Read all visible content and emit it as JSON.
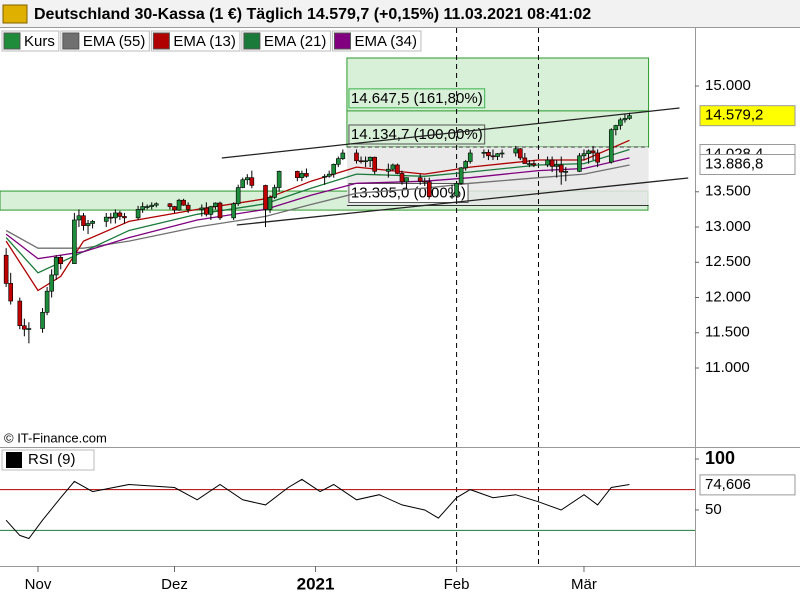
{
  "chart_data": {
    "type": "candlestick",
    "title": "Deutschland 30-Kassa (1 €) Täglich 14.579,7 (+0,15%) 11.03.2021 08:41:02",
    "name": "Kurs",
    "up_color": "#1e8c3a",
    "down_color": "#c00000",
    "x": [
      -7,
      -6,
      -4,
      -3,
      -2,
      1,
      2,
      3,
      4,
      5,
      8,
      9,
      10,
      11,
      12,
      15,
      16,
      17,
      18,
      19,
      22,
      23,
      24,
      25,
      26,
      29,
      30,
      31,
      32,
      33,
      36,
      37,
      38,
      39,
      40,
      43,
      44,
      45,
      46,
      47,
      50,
      51,
      52,
      53,
      57,
      58,
      59,
      63,
      64,
      65,
      66,
      67,
      70,
      71,
      72,
      73,
      74,
      77,
      78,
      79,
      80,
      81,
      84,
      85,
      86,
      91,
      92,
      93,
      94,
      95,
      98,
      99,
      100,
      101,
      102,
      105,
      106,
      107,
      108,
      109,
      112,
      113,
      114,
      115,
      116,
      119,
      120,
      121,
      122,
      123,
      126,
      127,
      128,
      129,
      130
    ],
    "open": [
      12600,
      12200,
      11950,
      11600,
      11550,
      11560,
      11790,
      12090,
      12320,
      12570,
      12480,
      13100,
      13160,
      13020,
      13050,
      13080,
      13140,
      13130,
      13200,
      13150,
      13130,
      13250,
      13290,
      13290,
      13310,
      13330,
      13290,
      13240,
      13380,
      13310,
      13250,
      13270,
      13180,
      13290,
      13340,
      13130,
      13330,
      13560,
      13670,
      13700,
      13590,
      13250,
      13420,
      13560,
      13790,
      13700,
      13760,
      13720,
      13720,
      13750,
      13890,
      13970,
      14050,
      13940,
      13930,
      13940,
      13990,
      13790,
      13820,
      13880,
      13760,
      13640,
      13700,
      13650,
      13640,
      13430,
      13440,
      13620,
      13840,
      13930,
      14050,
      14060,
      14010,
      14000,
      14040,
      14050,
      14110,
      13980,
      13900,
      13900,
      13880,
      13950,
      13860,
      13880,
      13780,
      13790,
      14010,
      14040,
      14080,
      14050,
      13920,
      14380,
      14440,
      14520,
      14540
    ],
    "high": [
      12700,
      12350,
      12000,
      11700,
      11650,
      11850,
      12150,
      12400,
      12600,
      12600,
      13200,
      13250,
      13200,
      13100,
      13100,
      13200,
      13200,
      13250,
      13230,
      13200,
      13300,
      13350,
      13320,
      13350,
      13350,
      13340,
      13300,
      13400,
      13400,
      13350,
      13320,
      13350,
      13300,
      13350,
      13360,
      13350,
      13600,
      13700,
      13750,
      13800,
      13600,
      13450,
      13600,
      13800,
      13800,
      13800,
      13830,
      13750,
      13800,
      13900,
      14000,
      14100,
      14100,
      14000,
      14000,
      14000,
      14000,
      13900,
      13900,
      13900,
      13800,
      13700,
      13750,
      13700,
      13700,
      13600,
      13650,
      13850,
      13950,
      14100,
      14100,
      14100,
      14100,
      14050,
      14100,
      14150,
      14120,
      14050,
      13950,
      13950,
      14000,
      14000,
      13950,
      14000,
      13850,
      14050,
      14100,
      14100,
      14150,
      14100,
      14400,
      14450,
      14550,
      14600,
      14620
    ],
    "low": [
      12150,
      11900,
      11550,
      11450,
      11350,
      11500,
      11750,
      12000,
      12250,
      12400,
      12480,
      13000,
      12950,
      12900,
      12980,
      13000,
      13050,
      13050,
      13100,
      13050,
      13100,
      13200,
      13250,
      13250,
      13280,
      13250,
      13200,
      13230,
      13300,
      13200,
      13150,
      13150,
      13100,
      13250,
      13100,
      13100,
      13300,
      13550,
      13600,
      13550,
      13000,
      13200,
      13400,
      13500,
      13650,
      13650,
      13700,
      13600,
      13700,
      13700,
      13850,
      13950,
      13900,
      13900,
      13850,
      13850,
      13750,
      13700,
      13800,
      13750,
      13600,
      13550,
      13600,
      13580,
      13450,
      13400,
      13400,
      13600,
      13800,
      13900,
      13980,
      13950,
      13950,
      13950,
      13980,
      14000,
      13950,
      13900,
      13850,
      13850,
      13850,
      13780,
      13700,
      13600,
      13650,
      13780,
      13950,
      13900,
      13950,
      13850,
      13900,
      14300,
      14380,
      14480,
      14520
    ],
    "close": [
      12200,
      11950,
      11600,
      11550,
      11560,
      11790,
      12090,
      12320,
      12570,
      12480,
      13100,
      13160,
      13020,
      13050,
      13080,
      13140,
      13130,
      13200,
      13150,
      13130,
      13250,
      13290,
      13290,
      13310,
      13330,
      13290,
      13240,
      13380,
      13310,
      13250,
      13270,
      13180,
      13290,
      13340,
      13130,
      13330,
      13560,
      13670,
      13700,
      13590,
      13250,
      13420,
      13560,
      13790,
      13700,
      13760,
      13720,
      13720,
      13750,
      13890,
      13970,
      14050,
      13940,
      13930,
      13940,
      13990,
      13790,
      13820,
      13880,
      13760,
      13640,
      13700,
      13650,
      13640,
      13430,
      13440,
      13620,
      13840,
      13930,
      14050,
      14060,
      14010,
      14000,
      14040,
      14050,
      14110,
      13980,
      13900,
      13900,
      13880,
      13950,
      13860,
      13880,
      13780,
      13790,
      14010,
      14040,
      14080,
      14050,
      13920,
      14380,
      14440,
      14520,
      14540,
      14580
    ],
    "xlim": [
      -8.35,
      144.4
    ],
    "xticks": [
      {
        "value": 0,
        "label": "Nov"
      },
      {
        "value": 30,
        "label": "Dez"
      },
      {
        "value": 61,
        "label": "2021"
      },
      {
        "value": 92,
        "label": "Feb"
      },
      {
        "value": 120,
        "label": "Mär"
      }
    ],
    "ylim": [
      9908,
      15823
    ],
    "yticks": [
      {
        "value": 11000,
        "label": "11.000"
      },
      {
        "value": 11500,
        "label": "11.500"
      },
      {
        "value": 12000,
        "label": "12.000"
      },
      {
        "value": 12500,
        "label": "12.500"
      },
      {
        "value": 13000,
        "label": "13.000"
      },
      {
        "value": 13500,
        "label": "13.500"
      },
      {
        "value": 15000,
        "label": "15.000"
      }
    ],
    "overlays": [
      {
        "name": "EMA (55)",
        "color": "#707070",
        "x": [
          -7,
          0,
          10,
          20,
          35,
          50,
          60,
          70,
          85,
          95,
          110,
          120,
          130
        ],
        "values": [
          12950,
          12700,
          12700,
          12800,
          13000,
          13150,
          13320,
          13480,
          13550,
          13620,
          13700,
          13750,
          13880
        ]
      },
      {
        "name": "EMA (13)",
        "color": "#b00000",
        "x": [
          -7,
          0,
          5,
          10,
          20,
          35,
          50,
          60,
          70,
          85,
          95,
          110,
          120,
          130
        ],
        "values": [
          12800,
          12100,
          12300,
          12800,
          13080,
          13250,
          13400,
          13650,
          13850,
          13750,
          13850,
          13950,
          13950,
          14230
        ]
      },
      {
        "name": "EMA (21)",
        "color": "#1a7a3a",
        "x": [
          -7,
          0,
          10,
          20,
          35,
          50,
          60,
          70,
          85,
          95,
          110,
          120,
          130
        ],
        "values": [
          12850,
          12350,
          12650,
          12950,
          13180,
          13330,
          13550,
          13750,
          13720,
          13780,
          13880,
          13900,
          14100
        ]
      },
      {
        "name": "EMA (34)",
        "color": "#800080",
        "x": [
          -7,
          0,
          10,
          20,
          35,
          50,
          60,
          70,
          85,
          95,
          110,
          120,
          130
        ],
        "values": [
          12900,
          12550,
          12650,
          12850,
          13100,
          13250,
          13450,
          13620,
          13650,
          13700,
          13800,
          13830,
          13980
        ]
      }
    ],
    "trendlines": [
      {
        "x": [
          40.4,
          141
        ],
        "values": [
          13979,
          14688
        ]
      },
      {
        "x": [
          43.7,
          142.9
        ],
        "values": [
          13028,
          13695
        ]
      }
    ],
    "vlines": [
      92,
      110
    ],
    "zone": {
      "range": [
        13240,
        13510
      ],
      "color": "#d8efd8"
    },
    "fibonacci": {
      "x": [
        67.9,
        134.2
      ],
      "levels": [
        {
          "value": 14647.5,
          "label": "14.647,5 (161,80%)"
        },
        {
          "value": 14134.7,
          "label": "14.134,7 (100,00%)"
        },
        {
          "value": 13305,
          "label": "13.305,0 (0,00%)"
        }
      ]
    },
    "price_labels": [
      {
        "value": 14579.2,
        "label": "14.579,2",
        "color": "#ffff00"
      },
      {
        "value": 14028.4,
        "label": "14.028,4",
        "color": "#ffffff"
      },
      {
        "value": 13886.8,
        "label": "13.886,8",
        "color": "#ffffff"
      }
    ],
    "source": "© IT-Finance.com",
    "rsi": {
      "type": "line",
      "name": "RSI (9)",
      "color": "#000000",
      "x": [
        -7,
        -4,
        -2,
        1,
        5,
        8,
        12,
        20,
        30,
        35,
        40,
        45,
        50,
        55,
        58,
        62,
        65,
        70,
        75,
        80,
        85,
        88,
        92,
        95,
        100,
        105,
        110,
        115,
        120,
        123,
        126,
        130
      ],
      "values": [
        40,
        25,
        22,
        40,
        62,
        78,
        68,
        75,
        72,
        60,
        75,
        60,
        55,
        72,
        80,
        68,
        75,
        60,
        65,
        55,
        50,
        42,
        62,
        70,
        62,
        65,
        58,
        50,
        65,
        55,
        72,
        75
      ],
      "ylim": [
        -4,
        110.8
      ],
      "yticks": [
        100,
        50
      ],
      "levels": [
        {
          "value": 70,
          "color": "#b00000"
        },
        {
          "value": 30,
          "color": "#1a7a3a"
        }
      ],
      "last_label": {
        "value": 74.606,
        "label": "74,606"
      }
    }
  }
}
